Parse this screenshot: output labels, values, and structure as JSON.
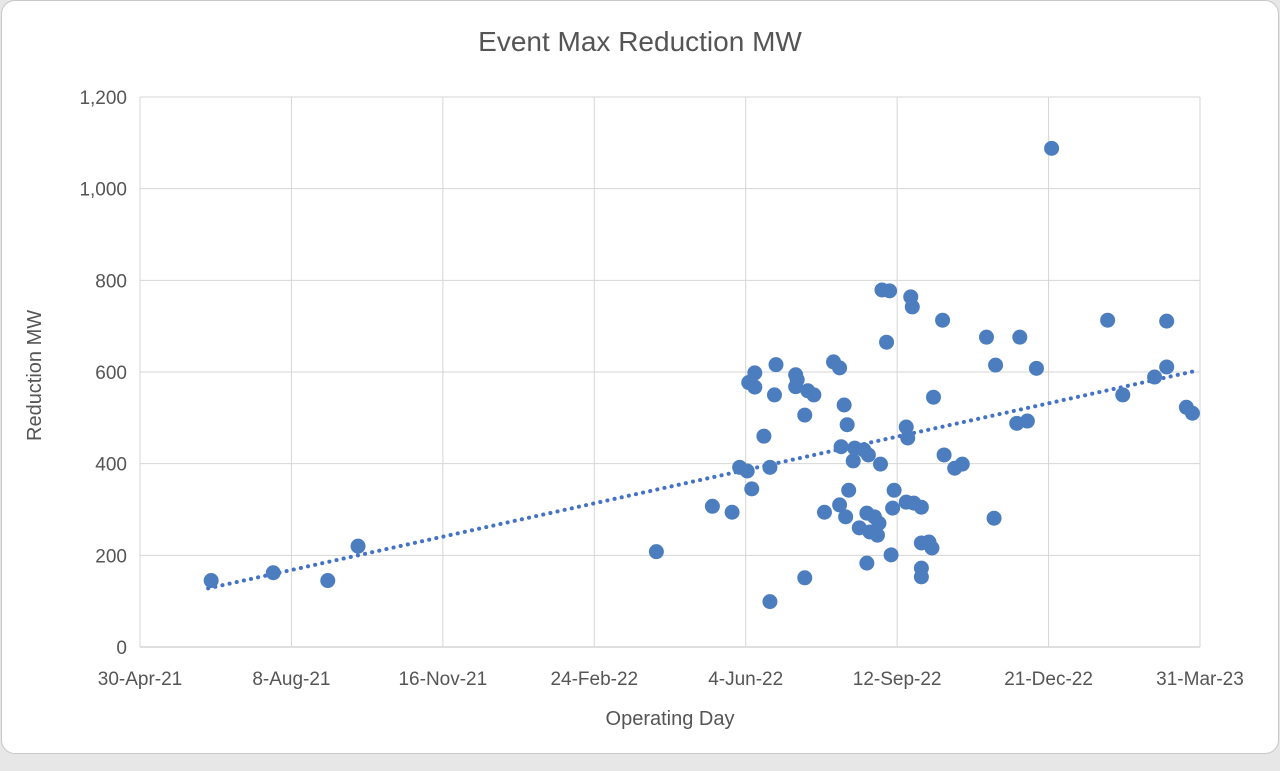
{
  "chart_data": {
    "type": "scatter",
    "title": "Event Max Reduction MW",
    "xlabel": "Operating Day",
    "ylabel": "Reduction MW",
    "legend": "none",
    "grid": true,
    "x_axis_note": "days measured from first tick 30-Apr-21; ticks every 100 days",
    "x_range_days": [
      0,
      700
    ],
    "x_tick_days": [
      0,
      100,
      200,
      300,
      400,
      500,
      600,
      700
    ],
    "x_tick_labels": [
      "30-Apr-21",
      "8-Aug-21",
      "16-Nov-21",
      "24-Feb-22",
      "4-Jun-22",
      "12-Sep-22",
      "21-Dec-22",
      "31-Mar-23"
    ],
    "ylim": [
      0,
      1200
    ],
    "y_ticks": [
      0,
      200,
      400,
      600,
      800,
      1000,
      1200
    ],
    "y_tick_labels": [
      "0",
      "200",
      "400",
      "600",
      "800",
      "1,000",
      "1,200"
    ],
    "marker_color": "#4C7DBF",
    "trend_color": "#4472C4",
    "gridline_color": "#D6D6D6",
    "axis_line_color": "#BFBFBF",
    "text_color": "#555555",
    "points_day_mw": [
      [
        47,
        145
      ],
      [
        88,
        162
      ],
      [
        124,
        145
      ],
      [
        144,
        220
      ],
      [
        341,
        208
      ],
      [
        378,
        307
      ],
      [
        391,
        294
      ],
      [
        396,
        392
      ],
      [
        401,
        384
      ],
      [
        404,
        345
      ],
      [
        412,
        460
      ],
      [
        416,
        392
      ],
      [
        402,
        577
      ],
      [
        406,
        567
      ],
      [
        406,
        598
      ],
      [
        419,
        550
      ],
      [
        420,
        616
      ],
      [
        416,
        99
      ],
      [
        439,
        151
      ],
      [
        433,
        594
      ],
      [
        434,
        583
      ],
      [
        433,
        568
      ],
      [
        441,
        559
      ],
      [
        445,
        550
      ],
      [
        439,
        506
      ],
      [
        458,
        622
      ],
      [
        462,
        609
      ],
      [
        465,
        528
      ],
      [
        467,
        485
      ],
      [
        463,
        437
      ],
      [
        471,
        406
      ],
      [
        472,
        434
      ],
      [
        478,
        430
      ],
      [
        481,
        419
      ],
      [
        489,
        399
      ],
      [
        452,
        294
      ],
      [
        462,
        310
      ],
      [
        466,
        284
      ],
      [
        468,
        342
      ],
      [
        475,
        260
      ],
      [
        480,
        292
      ],
      [
        482,
        251
      ],
      [
        485,
        284
      ],
      [
        487,
        244
      ],
      [
        488,
        270
      ],
      [
        480,
        183
      ],
      [
        496,
        201
      ],
      [
        490,
        779
      ],
      [
        495,
        777
      ],
      [
        493,
        665
      ],
      [
        497,
        303
      ],
      [
        498,
        342
      ],
      [
        506,
        316
      ],
      [
        511,
        314
      ],
      [
        516,
        305
      ],
      [
        509,
        764
      ],
      [
        510,
        742
      ],
      [
        530,
        713
      ],
      [
        506,
        480
      ],
      [
        507,
        456
      ],
      [
        524,
        545
      ],
      [
        531,
        419
      ],
      [
        538,
        390
      ],
      [
        543,
        399
      ],
      [
        516,
        227
      ],
      [
        521,
        229
      ],
      [
        523,
        216
      ],
      [
        516,
        172
      ],
      [
        516,
        153
      ],
      [
        559,
        676
      ],
      [
        564,
        281
      ],
      [
        565,
        615
      ],
      [
        581,
        676
      ],
      [
        592,
        608
      ],
      [
        602,
        1088
      ],
      [
        579,
        488
      ],
      [
        586,
        493
      ],
      [
        639,
        713
      ],
      [
        649,
        550
      ],
      [
        670,
        589
      ],
      [
        678,
        711
      ],
      [
        678,
        611
      ],
      [
        691,
        523
      ],
      [
        695,
        510
      ]
    ],
    "trendline": {
      "style": "dotted",
      "x1_day": 45,
      "y1_mw": 128,
      "x2_day": 698,
      "y2_mw": 603
    }
  }
}
